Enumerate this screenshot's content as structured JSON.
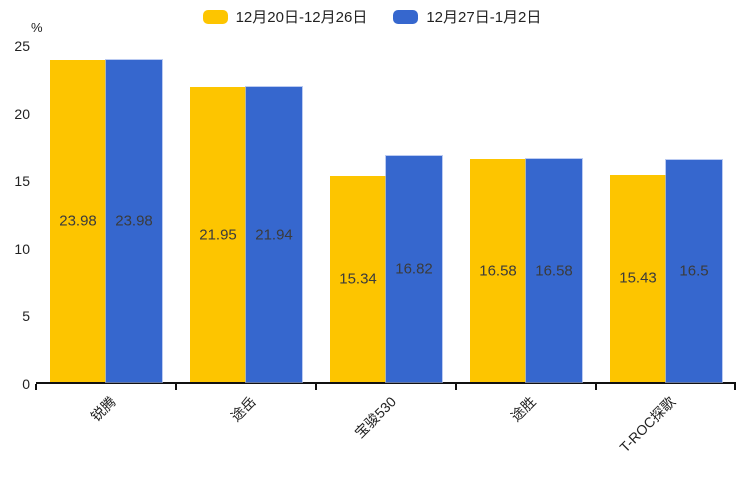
{
  "legend": [
    {
      "label": "12月20日-12月26日",
      "color": "#FDC500"
    },
    {
      "label": "12月27日-1月2日",
      "color": "#3667CE"
    }
  ],
  "chart_data": {
    "type": "bar",
    "title": "",
    "categories": [
      "锐腾",
      "途岳",
      "宝骏530",
      "途胜",
      "T-ROC探歌"
    ],
    "series": [
      {
        "name": "12月20日-12月26日",
        "color": "#FDC500",
        "values": [
          23.98,
          21.95,
          15.34,
          16.58,
          15.43
        ]
      },
      {
        "name": "12月27日-1月2日",
        "color": "#3667CE",
        "values": [
          23.98,
          21.94,
          16.82,
          16.58,
          16.5
        ]
      }
    ],
    "xlabel": "",
    "ylabel": "%",
    "yticks": [
      0,
      5,
      10,
      15,
      20,
      25
    ],
    "ylim": [
      0,
      25
    ],
    "grid": false,
    "legend_position": "top",
    "value_labels": "centered-inside-bars"
  }
}
